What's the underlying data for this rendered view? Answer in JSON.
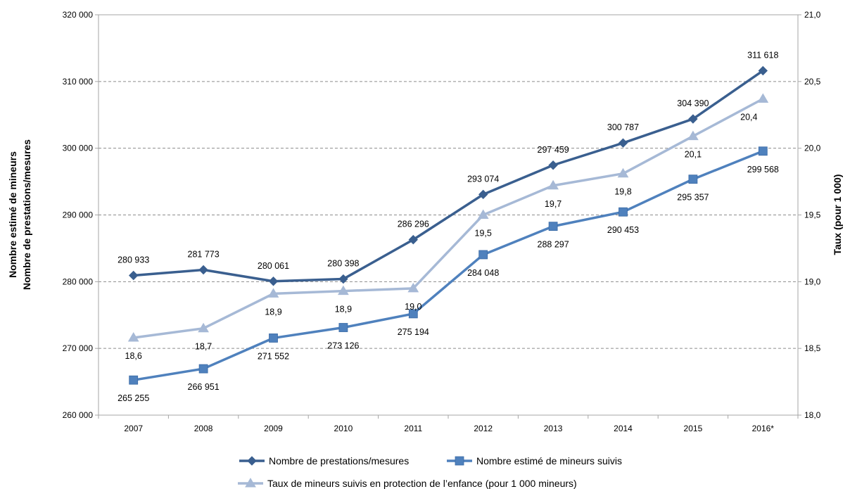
{
  "chart_data": {
    "type": "line",
    "title": "",
    "categories": [
      "2007",
      "2008",
      "2009",
      "2010",
      "2011",
      "2012",
      "2013",
      "2014",
      "2015",
      "2016*"
    ],
    "y_left": {
      "label_lines": [
        "Nombre estimé de mineurs",
        "Nombre de prestations/mesures"
      ],
      "ylim": [
        260000,
        320000
      ],
      "ticks": [
        260000,
        270000,
        280000,
        290000,
        300000,
        310000,
        320000
      ],
      "tick_labels": [
        "260 000",
        "270 000",
        "280 000",
        "290 000",
        "300 000",
        "310 000",
        "320 000"
      ]
    },
    "y_right": {
      "label": "Taux (pour 1 000)",
      "ylim": [
        18.0,
        21.0
      ],
      "ticks": [
        18.0,
        18.5,
        19.0,
        19.5,
        20.0,
        20.5,
        21.0
      ],
      "tick_labels": [
        "18,0",
        "18,5",
        "19,0",
        "19,5",
        "20,0",
        "20,5",
        "21,0"
      ]
    },
    "grid": true,
    "legend_position": "bottom",
    "series": [
      {
        "name": "Nombre de prestations/mesures",
        "axis": "left",
        "marker": "diamond",
        "color": "#3a5f8f",
        "values": [
          280933,
          281773,
          280061,
          280398,
          286296,
          293074,
          297459,
          300787,
          304390,
          311618
        ],
        "labels": [
          "280 933",
          "281 773",
          "280 061",
          "280 398",
          "286 296",
          "293 074",
          "297 459",
          "300 787",
          "304 390",
          "311 618"
        ],
        "label_position": "above"
      },
      {
        "name": "Nombre estimé de mineurs  suivis",
        "axis": "left",
        "marker": "square",
        "color": "#4f81bd",
        "values": [
          265255,
          266951,
          271552,
          273126,
          275194,
          284048,
          288297,
          290453,
          295357,
          299568
        ],
        "labels": [
          "265 255",
          "266 951",
          "271 552",
          "273 126",
          "275 194",
          "284 048",
          "288 297",
          "290 453",
          "295 357",
          "299 568"
        ],
        "label_position": "below"
      },
      {
        "name": "Taux de mineurs suivis en protection de l’enfance (pour 1 000 mineurs)",
        "axis": "right",
        "marker": "triangle",
        "color": "#a6b9d6",
        "values": [
          18.58,
          18.65,
          18.91,
          18.93,
          18.95,
          19.5,
          19.72,
          19.81,
          20.09,
          20.37
        ],
        "labels": [
          "18,6",
          "18,7",
          "18,9",
          "18,9",
          "19,0",
          "19,5",
          "19,7",
          "19,8",
          "20,1",
          "20,4"
        ],
        "label_position": "below"
      }
    ]
  }
}
